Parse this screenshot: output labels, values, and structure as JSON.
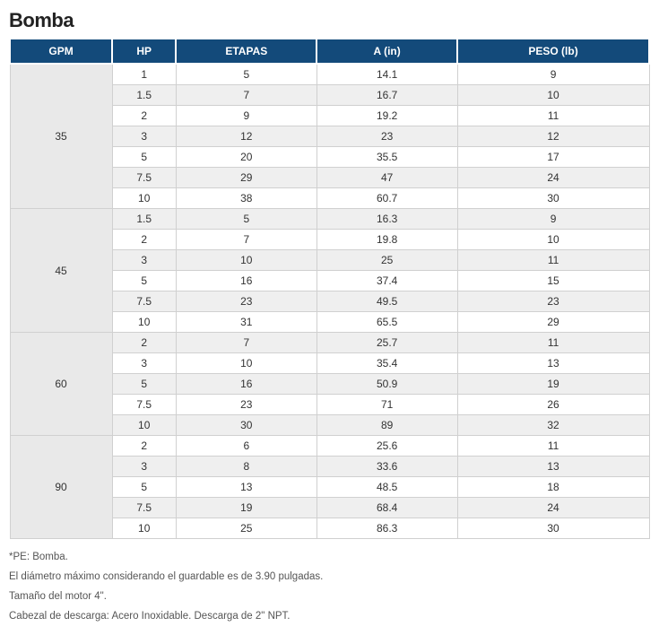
{
  "title": "Bomba",
  "table": {
    "type": "table",
    "header_bg": "#134a7a",
    "header_fg": "#ffffff",
    "row_odd_bg": "#ffffff",
    "row_even_bg": "#efefef",
    "gpm_bg": "#e9e9e9",
    "border_color": "#d0d0d0",
    "font_size_pt": 9,
    "columns": [
      {
        "key": "gpm",
        "label": "GPM",
        "width_pct": 16
      },
      {
        "key": "hp",
        "label": "HP",
        "width_pct": 10
      },
      {
        "key": "etapas",
        "label": "ETAPAS",
        "width_pct": 22
      },
      {
        "key": "a",
        "label": "A (in)",
        "width_pct": 22
      },
      {
        "key": "peso",
        "label": "PESO (lb)",
        "width_pct": 30
      }
    ],
    "groups": [
      {
        "gpm": "35",
        "rows": [
          {
            "hp": "1",
            "etapas": "5",
            "a": "14.1",
            "peso": "9"
          },
          {
            "hp": "1.5",
            "etapas": "7",
            "a": "16.7",
            "peso": "10"
          },
          {
            "hp": "2",
            "etapas": "9",
            "a": "19.2",
            "peso": "11"
          },
          {
            "hp": "3",
            "etapas": "12",
            "a": "23",
            "peso": "12"
          },
          {
            "hp": "5",
            "etapas": "20",
            "a": "35.5",
            "peso": "17"
          },
          {
            "hp": "7.5",
            "etapas": "29",
            "a": "47",
            "peso": "24"
          },
          {
            "hp": "10",
            "etapas": "38",
            "a": "60.7",
            "peso": "30"
          }
        ]
      },
      {
        "gpm": "45",
        "rows": [
          {
            "hp": "1.5",
            "etapas": "5",
            "a": "16.3",
            "peso": "9"
          },
          {
            "hp": "2",
            "etapas": "7",
            "a": "19.8",
            "peso": "10"
          },
          {
            "hp": "3",
            "etapas": "10",
            "a": "25",
            "peso": "11"
          },
          {
            "hp": "5",
            "etapas": "16",
            "a": "37.4",
            "peso": "15"
          },
          {
            "hp": "7.5",
            "etapas": "23",
            "a": "49.5",
            "peso": "23"
          },
          {
            "hp": "10",
            "etapas": "31",
            "a": "65.5",
            "peso": "29"
          }
        ]
      },
      {
        "gpm": "60",
        "rows": [
          {
            "hp": "2",
            "etapas": "7",
            "a": "25.7",
            "peso": "11"
          },
          {
            "hp": "3",
            "etapas": "10",
            "a": "35.4",
            "peso": "13"
          },
          {
            "hp": "5",
            "etapas": "16",
            "a": "50.9",
            "peso": "19"
          },
          {
            "hp": "7.5",
            "etapas": "23",
            "a": "71",
            "peso": "26"
          },
          {
            "hp": "10",
            "etapas": "30",
            "a": "89",
            "peso": "32"
          }
        ]
      },
      {
        "gpm": "90",
        "rows": [
          {
            "hp": "2",
            "etapas": "6",
            "a": "25.6",
            "peso": "11"
          },
          {
            "hp": "3",
            "etapas": "8",
            "a": "33.6",
            "peso": "13"
          },
          {
            "hp": "5",
            "etapas": "13",
            "a": "48.5",
            "peso": "18"
          },
          {
            "hp": "7.5",
            "etapas": "19",
            "a": "68.4",
            "peso": "24"
          },
          {
            "hp": "10",
            "etapas": "25",
            "a": "86.3",
            "peso": "30"
          }
        ]
      }
    ]
  },
  "notes": [
    "*PE: Bomba.",
    "El diámetro máximo considerando el guardable es de 3.90 pulgadas.",
    "Tamaño del motor 4\".",
    "Cabezal de descarga: Acero Inoxidable. Descarga de 2\" NPT."
  ]
}
